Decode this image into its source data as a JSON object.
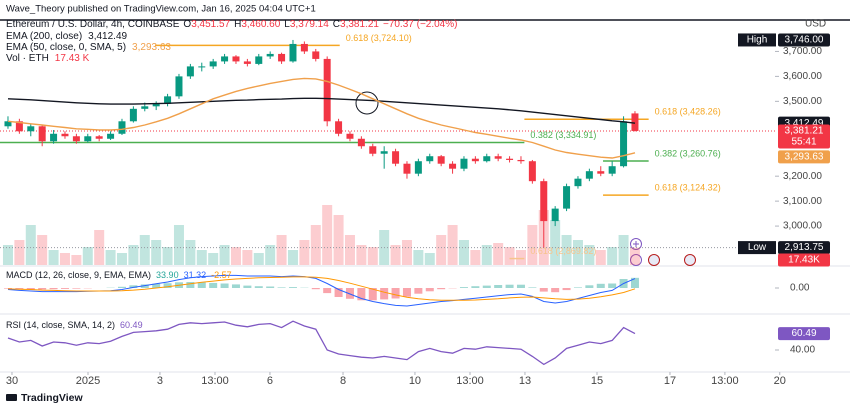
{
  "header": {
    "byline": "Wave_Theory published on TradingView.com, Jan 16, 2025 04:04 UTC+1",
    "currency": "USD",
    "logo": "TradingView"
  },
  "chart_data": [
    {
      "type": "candlestick",
      "name": "Ethereum / U.S. Dollar, 4h, COINBASE",
      "ohlc_legend": [
        {
          "key": "O",
          "label": "3,451.57"
        },
        {
          "key": "H",
          "label": "3,460.60"
        },
        {
          "key": "L",
          "label": "3,379.14"
        },
        {
          "key": "C",
          "label": "3,381.21"
        }
      ],
      "change": "−70.37 (−2.04%)",
      "countdown": "55:41",
      "up_color": "#089981",
      "down_color": "#f23645",
      "open": [
        3400,
        3420,
        3380,
        3400,
        3340,
        3370,
        3360,
        3340,
        3360,
        3350,
        3370,
        3420,
        3470,
        3480,
        3490,
        3520,
        3600,
        3640,
        3640,
        3660,
        3680,
        3660,
        3650,
        3680,
        3690,
        3660,
        3730,
        3700,
        3670,
        3420,
        3370,
        3350,
        3320,
        3290,
        3300,
        3250,
        3210,
        3260,
        3280,
        3250,
        3230,
        3270,
        3260,
        3280,
        3270,
        3265,
        3260,
        3180,
        3020,
        3070,
        3160,
        3190,
        3220,
        3210,
        3240,
        3451.57
      ],
      "high": [
        3440,
        3430,
        3410,
        3405,
        3385,
        3380,
        3370,
        3370,
        3365,
        3380,
        3430,
        3480,
        3495,
        3500,
        3530,
        3610,
        3650,
        3655,
        3670,
        3690,
        3685,
        3670,
        3690,
        3700,
        3695,
        3746,
        3740,
        3710,
        3680,
        3430,
        3380,
        3360,
        3330,
        3320,
        3310,
        3260,
        3270,
        3290,
        3285,
        3260,
        3280,
        3280,
        3290,
        3290,
        3280,
        3280,
        3265,
        3190,
        3080,
        3170,
        3200,
        3230,
        3240,
        3260,
        3440,
        3460.6
      ],
      "low": [
        3390,
        3370,
        3360,
        3320,
        3330,
        3350,
        3330,
        3335,
        3340,
        3345,
        3365,
        3415,
        3460,
        3465,
        3480,
        3510,
        3590,
        3620,
        3630,
        3650,
        3650,
        3640,
        3645,
        3670,
        3650,
        3655,
        3690,
        3660,
        3400,
        3360,
        3340,
        3310,
        3280,
        3230,
        3240,
        3190,
        3200,
        3250,
        3240,
        3210,
        3220,
        3250,
        3255,
        3260,
        3255,
        3250,
        3170,
        2913.75,
        3000,
        3060,
        3150,
        3180,
        3200,
        3200,
        3235,
        3379.14
      ],
      "close": [
        3420,
        3380,
        3400,
        3340,
        3370,
        3360,
        3340,
        3360,
        3350,
        3370,
        3420,
        3470,
        3480,
        3490,
        3520,
        3600,
        3640,
        3640,
        3660,
        3680,
        3660,
        3650,
        3680,
        3690,
        3660,
        3730,
        3700,
        3670,
        3420,
        3370,
        3350,
        3320,
        3290,
        3300,
        3250,
        3210,
        3260,
        3280,
        3250,
        3230,
        3270,
        3260,
        3280,
        3270,
        3265,
        3260,
        3180,
        3020,
        3070,
        3160,
        3190,
        3220,
        3210,
        3240,
        3420,
        3381.21
      ],
      "close_label": "3,381.21",
      "high_marker": {
        "label": "High",
        "value_label": "3,746.00",
        "index": 25
      },
      "low_marker": {
        "label": "Low",
        "value_label": "2,913.75",
        "index": 47
      },
      "series": [
        {
          "name": "EMA (200, close)",
          "color": "#131722",
          "last_label": "3,412.49",
          "values": [
            3510,
            3508,
            3506,
            3503,
            3500,
            3497,
            3494,
            3492,
            3490,
            3489,
            3489,
            3489,
            3490,
            3491,
            3492,
            3494,
            3496,
            3498,
            3500,
            3502,
            3504,
            3505,
            3507,
            3508,
            3509,
            3511,
            3512,
            3512,
            3511,
            3509,
            3507,
            3505,
            3503,
            3500,
            3497,
            3494,
            3491,
            3488,
            3485,
            3482,
            3479,
            3476,
            3473,
            3470,
            3466,
            3462,
            3457,
            3452,
            3447,
            3442,
            3437,
            3432,
            3427,
            3422,
            3418,
            3412.49
          ]
        },
        {
          "name": "EMA (50, close, 0, SMA, 5)",
          "color": "#f0a04b",
          "last_label": "3,293.63",
          "values": [
            3420,
            3415,
            3410,
            3405,
            3400,
            3395,
            3390,
            3388,
            3385,
            3385,
            3388,
            3395,
            3405,
            3418,
            3432,
            3450,
            3470,
            3490,
            3510,
            3525,
            3540,
            3552,
            3562,
            3572,
            3580,
            3588,
            3592,
            3590,
            3580,
            3565,
            3548,
            3530,
            3510,
            3490,
            3470,
            3450,
            3432,
            3418,
            3405,
            3395,
            3385,
            3375,
            3368,
            3360,
            3352,
            3345,
            3335,
            3320,
            3305,
            3295,
            3288,
            3282,
            3276,
            3273,
            3282,
            3293.63
          ]
        }
      ],
      "volume": {
        "name": "Vol · ETH",
        "legend_label": "17.43 K",
        "axis_label": "17.43K",
        "vlim": [
          0,
          60
        ],
        "values": [
          20,
          25,
          40,
          30,
          15,
          12,
          10,
          18,
          35,
          15,
          12,
          20,
          30,
          25,
          18,
          40,
          25,
          15,
          12,
          20,
          18,
          15,
          12,
          20,
          30,
          15,
          25,
          40,
          60,
          50,
          30,
          20,
          18,
          35,
          20,
          25,
          15,
          12,
          30,
          40,
          25,
          15,
          20,
          22,
          18,
          15,
          40,
          55,
          45,
          30,
          25,
          20,
          15,
          18,
          30,
          17.43
        ]
      },
      "levels": [
        {
          "label": "0.618 (3,724.10)",
          "value": 3724.1,
          "color": "#f5a623",
          "x": [
            12.9,
            29.1
          ]
        },
        {
          "label": "0.382 (3,334.91)",
          "value": 3334.91,
          "color": "#4caf50",
          "x": [
            -0.7,
            45.3
          ]
        },
        {
          "label": "0.618 (3,428.26)",
          "value": 3428.26,
          "color": "#f5a623",
          "x": [
            45.3,
            56.2
          ]
        },
        {
          "label": "0.382 (3,260.76)",
          "value": 3260.76,
          "color": "#4caf50",
          "x": [
            52.2,
            56.2
          ]
        },
        {
          "label": "0.618 (3,124.32)",
          "value": 3124.32,
          "color": "#f5a623",
          "x": [
            52.2,
            56.2
          ]
        },
        {
          "label": "0.618 (2,869.82)",
          "value": 2869.82,
          "color": "#f7c48c",
          "x": [
            44,
            45.3
          ]
        }
      ],
      "ylim": [
        2844,
        3826
      ],
      "yticks": [
        {
          "value": 3000,
          "label": "3,000.00"
        },
        {
          "value": 3100,
          "label": "3,100.00"
        },
        {
          "value": 3200,
          "label": "3,200.00"
        },
        {
          "value": 3500,
          "label": "3,500.00"
        },
        {
          "value": 3600,
          "label": "3,600.00"
        },
        {
          "value": 3700,
          "label": "3,700.00"
        }
      ],
      "xlim": [
        -0.7,
        68.6
      ],
      "xticks": [
        {
          "value": 0.35,
          "label": "30"
        },
        {
          "value": 7.02,
          "label": "2025"
        },
        {
          "value": 13.33,
          "label": "3"
        },
        {
          "value": 18.16,
          "label": "13:00"
        },
        {
          "value": 22.98,
          "label": "6"
        },
        {
          "value": 29.39,
          "label": "8"
        },
        {
          "value": 35.7,
          "label": "10"
        },
        {
          "value": 40.53,
          "label": "13:00"
        },
        {
          "value": 45.35,
          "label": "13"
        },
        {
          "value": 51.67,
          "label": "15"
        },
        {
          "value": 58.07,
          "label": "17"
        },
        {
          "value": 62.89,
          "label": "13:00"
        },
        {
          "value": 67.7,
          "label": "20"
        }
      ]
    },
    {
      "type": "macd",
      "title": "MACD (12, 26, close, 9, EMA, EMA)",
      "histogram": {
        "color": "#26a69a",
        "down_color": "#f23645",
        "last_label": "33.90",
        "values": [
          -2,
          -4,
          -5,
          -5,
          -4,
          -3,
          -2,
          -1,
          0,
          1,
          4,
          9,
          12,
          14,
          16,
          19,
          20,
          19,
          17,
          15,
          12,
          8,
          6,
          5,
          2,
          3,
          1,
          -4,
          -17,
          -30,
          -36,
          -41,
          -41,
          -38,
          -35,
          -29,
          -19,
          -11,
          -4,
          -1,
          3,
          6,
          8,
          10,
          11,
          11,
          2,
          -12,
          -14,
          -7,
          2,
          9,
          14,
          15,
          30,
          33.9
        ]
      },
      "series": [
        {
          "color": "#2962ff",
          "last_label": "31.32",
          "values": [
            -5,
            -8,
            -10,
            -12,
            -12,
            -12,
            -12,
            -11,
            -10,
            -9,
            -5,
            2,
            8,
            14,
            20,
            28,
            34,
            38,
            40,
            42,
            42,
            40,
            40,
            40,
            38,
            40,
            38,
            32,
            15,
            -5,
            -20,
            -35,
            -45,
            -52,
            -58,
            -60,
            -55,
            -50,
            -45,
            -42,
            -38,
            -34,
            -30,
            -26,
            -22,
            -20,
            -28,
            -45,
            -50,
            -45,
            -35,
            -25,
            -15,
            -8,
            15,
            31.32
          ]
        },
        {
          "color": "#ff9800",
          "last_label": "-2.57",
          "values": [
            -3,
            -4,
            -5,
            -7,
            -8,
            -9,
            -10,
            -10,
            -10,
            -10,
            -9,
            -7,
            -4,
            0,
            4,
            9,
            14,
            19,
            23,
            27,
            30,
            32,
            34,
            35,
            36,
            37,
            37,
            36,
            32,
            25,
            16,
            6,
            -4,
            -14,
            -23,
            -31,
            -36,
            -39,
            -41,
            -41,
            -41,
            -40,
            -38,
            -36,
            -33,
            -31,
            -30,
            -33,
            -36,
            -38,
            -37,
            -34,
            -29,
            -23,
            -15,
            -2.57
          ]
        }
      ],
      "ylim": [
        -80,
        60
      ],
      "yticks": [
        {
          "value": 0,
          "label": "0.00"
        }
      ]
    },
    {
      "type": "rsi",
      "title": "RSI (14, close, SMA, 14, 2)",
      "color": "#7e57c2",
      "last_label": "60.49",
      "values": [
        55,
        50,
        52,
        45,
        50,
        49,
        46,
        49,
        48,
        51,
        57,
        62,
        63,
        64,
        66,
        72,
        74,
        73,
        74,
        75,
        71,
        69,
        72,
        73,
        68,
        76,
        70,
        66,
        40,
        35,
        33,
        31,
        30,
        32,
        30,
        28,
        38,
        42,
        38,
        36,
        42,
        41,
        44,
        43,
        42,
        41,
        32,
        22,
        30,
        42,
        46,
        50,
        48,
        52,
        68,
        60.49
      ],
      "ylim": [
        15,
        80
      ],
      "yticks": [
        {
          "value": 40,
          "label": "40.00"
        }
      ]
    }
  ]
}
